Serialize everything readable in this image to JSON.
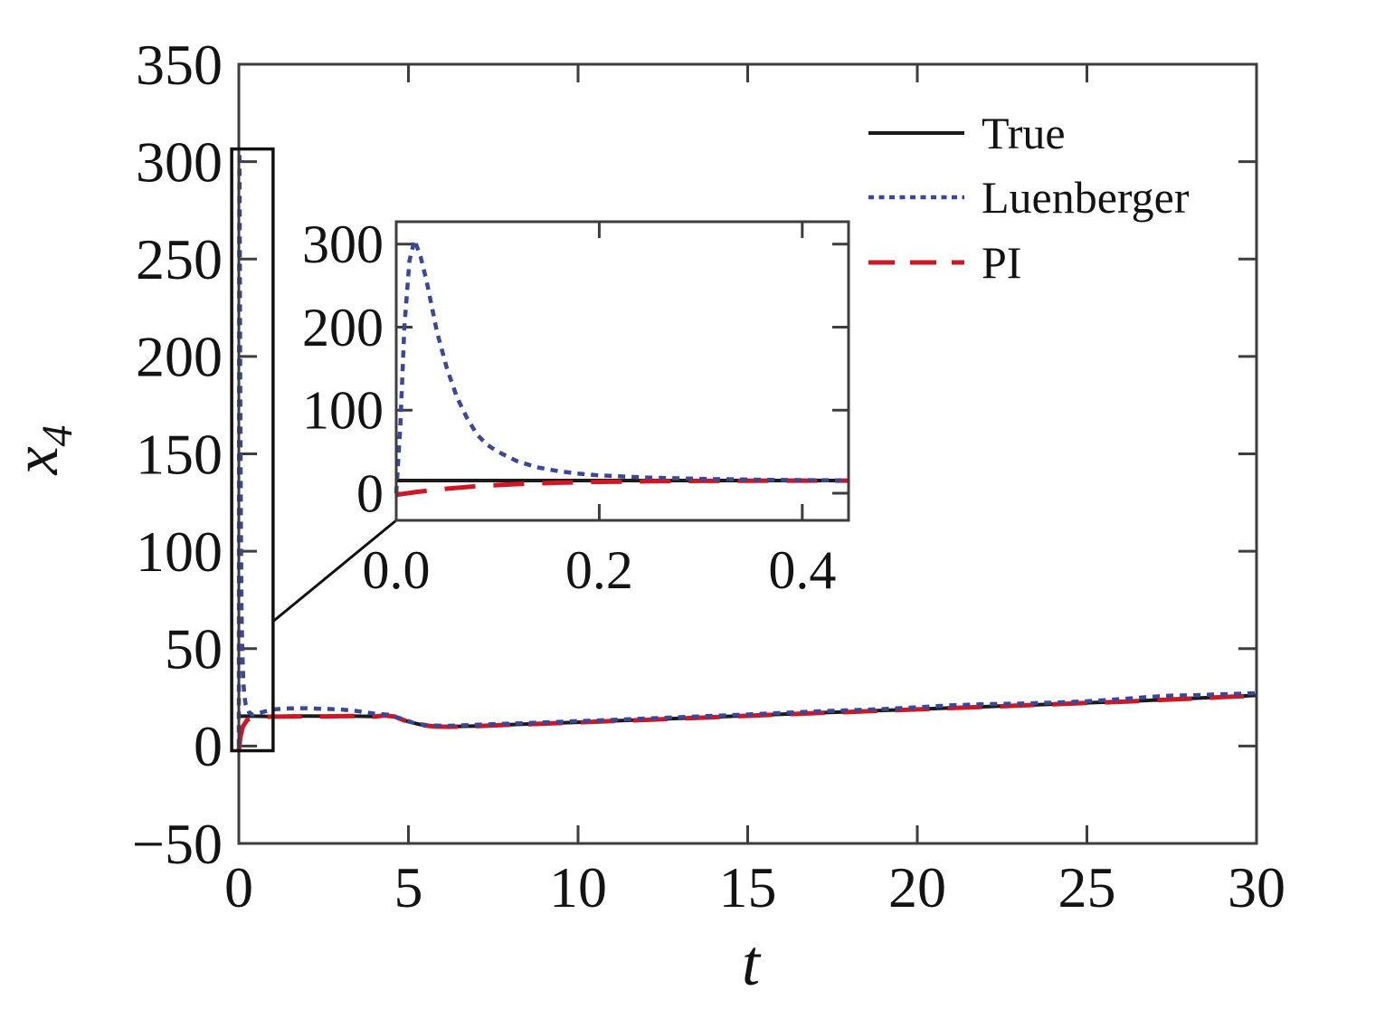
{
  "figure": {
    "background": "#ffffff",
    "axis_color": "#3d3d3d",
    "annotation_color": "#111111"
  },
  "chart_data": {
    "type": "line",
    "title": "",
    "xlabel": "t",
    "ylabel": "x4",
    "ylabel_base": "x",
    "ylabel_sub": "4",
    "legend": {
      "position": "upper-right-inside",
      "frame": false,
      "items": [
        {
          "label": "True",
          "series": "True"
        },
        {
          "label": "Luenberger",
          "series": "Luenberger"
        },
        {
          "label": "PI",
          "series": "PI"
        }
      ]
    },
    "main": {
      "xlim": [
        0,
        30
      ],
      "ylim": [
        -50,
        350
      ],
      "xticks": [
        0,
        5,
        10,
        15,
        20,
        25,
        30
      ],
      "xtick_labels": [
        "0",
        "5",
        "10",
        "15",
        "20",
        "25",
        "30"
      ],
      "yticks": [
        -50,
        0,
        50,
        100,
        150,
        200,
        250,
        300,
        350
      ],
      "ytick_labels": [
        "−50",
        "0",
        "50",
        "100",
        "150",
        "200",
        "250",
        "300",
        "350"
      ],
      "grid": false,
      "series": [
        {
          "name": "True",
          "color": "#1a1a1a",
          "style": "solid",
          "points": [
            [
              0,
              15.3
            ],
            [
              0.5,
              15.3
            ],
            [
              1,
              15.2
            ],
            [
              1.5,
              15.3
            ],
            [
              2,
              15.4
            ],
            [
              2.5,
              15.3
            ],
            [
              3,
              15.4
            ],
            [
              3.5,
              15.3
            ],
            [
              4,
              15.2
            ],
            [
              4.3,
              15.8
            ],
            [
              4.6,
              15.2
            ],
            [
              5,
              12.5
            ],
            [
              5.4,
              10.8
            ],
            [
              5.8,
              10.1
            ],
            [
              6.2,
              10.0
            ],
            [
              7,
              10.3
            ],
            [
              8,
              11.0
            ],
            [
              9,
              11.6
            ],
            [
              10,
              12.2
            ],
            [
              11,
              12.9
            ],
            [
              12,
              13.5
            ],
            [
              13,
              14.2
            ],
            [
              14,
              14.9
            ],
            [
              15,
              15.6
            ],
            [
              16,
              16.3
            ],
            [
              17,
              17.0
            ],
            [
              18,
              17.6
            ],
            [
              19,
              18.3
            ],
            [
              20,
              18.9
            ],
            [
              21,
              19.6
            ],
            [
              22,
              20.2
            ],
            [
              23,
              20.9
            ],
            [
              24,
              21.5
            ],
            [
              25,
              22.2
            ],
            [
              26,
              22.8
            ],
            [
              27,
              23.6
            ],
            [
              28,
              24.4
            ],
            [
              29,
              25.2
            ],
            [
              30,
              26.0
            ]
          ]
        },
        {
          "name": "PI",
          "color": "#d01622",
          "style": "dashed",
          "points": [
            [
              0,
              -2
            ],
            [
              0.05,
              5
            ],
            [
              0.12,
              10
            ],
            [
              0.25,
              13.5
            ],
            [
              0.5,
              14.8
            ],
            [
              1,
              15.1
            ],
            [
              1.5,
              15.2
            ],
            [
              2,
              15.3
            ],
            [
              2.5,
              15.2
            ],
            [
              3,
              15.3
            ],
            [
              3.5,
              15.4
            ],
            [
              4,
              15.1
            ],
            [
              4.3,
              15.7
            ],
            [
              4.6,
              15.1
            ],
            [
              5,
              12.3
            ],
            [
              5.4,
              10.7
            ],
            [
              5.8,
              10.0
            ],
            [
              6.2,
              9.9
            ],
            [
              7,
              10.2
            ],
            [
              8,
              10.9
            ],
            [
              9,
              11.5
            ],
            [
              10,
              12.1
            ],
            [
              11,
              12.8
            ],
            [
              12,
              13.4
            ],
            [
              13,
              14.1
            ],
            [
              14,
              14.8
            ],
            [
              15,
              15.5
            ],
            [
              16,
              16.2
            ],
            [
              17,
              16.9
            ],
            [
              18,
              17.5
            ],
            [
              19,
              18.2
            ],
            [
              20,
              18.8
            ],
            [
              21,
              19.5
            ],
            [
              22,
              20.1
            ],
            [
              23,
              20.8
            ],
            [
              24,
              21.4
            ],
            [
              25,
              22.1
            ],
            [
              26,
              22.7
            ],
            [
              27,
              23.5
            ],
            [
              28,
              24.3
            ],
            [
              29,
              25.1
            ],
            [
              30,
              25.9
            ]
          ]
        },
        {
          "name": "Luenberger",
          "color": "#3a489c",
          "style": "dotted",
          "points": [
            [
              0,
              0
            ],
            [
              0.006,
              120
            ],
            [
              0.012,
              260
            ],
            [
              0.018,
              305
            ],
            [
              0.026,
              272
            ],
            [
              0.04,
              195
            ],
            [
              0.06,
              115
            ],
            [
              0.08,
              70
            ],
            [
              0.1,
              50
            ],
            [
              0.13,
              34
            ],
            [
              0.16,
              26.5
            ],
            [
              0.2,
              21.5
            ],
            [
              0.3,
              17.3
            ],
            [
              0.4,
              16.0
            ],
            [
              0.6,
              17.0
            ],
            [
              1,
              18.8
            ],
            [
              1.5,
              19.3
            ],
            [
              2,
              19.4
            ],
            [
              2.5,
              19.1
            ],
            [
              3,
              18.8
            ],
            [
              3.5,
              17.9
            ],
            [
              4,
              16.6
            ],
            [
              4.4,
              16.1
            ],
            [
              4.8,
              14.0
            ],
            [
              5.2,
              11.6
            ],
            [
              5.6,
              10.6
            ],
            [
              6.2,
              10.4
            ],
            [
              7,
              10.9
            ],
            [
              8,
              11.5
            ],
            [
              9,
              12.1
            ],
            [
              10,
              12.8
            ],
            [
              11,
              13.4
            ],
            [
              12,
              14.1
            ],
            [
              13,
              14.8
            ],
            [
              14,
              15.5
            ],
            [
              15,
              16.2
            ],
            [
              16,
              17.0
            ],
            [
              17,
              17.8
            ],
            [
              18,
              18.4
            ],
            [
              19,
              19.0
            ],
            [
              20,
              19.9
            ],
            [
              21,
              20.9
            ],
            [
              22,
              21.5
            ],
            [
              23,
              21.8
            ],
            [
              24,
              22.3
            ],
            [
              25,
              23.0
            ],
            [
              26,
              24.1
            ],
            [
              27,
              25.4
            ],
            [
              27.5,
              25.9
            ],
            [
              28,
              26.0
            ],
            [
              29,
              26.6
            ],
            [
              30,
              27.1
            ]
          ]
        }
      ]
    },
    "inset": {
      "xlim": [
        0,
        0.4456
      ],
      "ylim": [
        -32.7,
        327
      ],
      "xticks": [
        0,
        0.2,
        0.4
      ],
      "xtick_labels": [
        "0.0",
        "0.2",
        "0.4"
      ],
      "yticks": [
        0,
        100,
        200,
        300
      ],
      "ytick_labels": [
        "0",
        "100",
        "200",
        "300"
      ],
      "grid": false,
      "series": [
        {
          "name": "True",
          "color": "#1a1a1a",
          "style": "solid",
          "points": [
            [
              0,
              15.3
            ],
            [
              0.445,
              15.3
            ]
          ]
        },
        {
          "name": "PI",
          "color": "#d01622",
          "style": "dashed",
          "points": [
            [
              0,
              -2
            ],
            [
              0.02,
              1.5
            ],
            [
              0.05,
              5.5
            ],
            [
              0.08,
              8.5
            ],
            [
              0.12,
              11.0
            ],
            [
              0.16,
              12.6
            ],
            [
              0.2,
              13.6
            ],
            [
              0.25,
              14.4
            ],
            [
              0.3,
              14.8
            ],
            [
              0.35,
              15.0
            ],
            [
              0.4,
              15.1
            ],
            [
              0.445,
              15.2
            ]
          ]
        },
        {
          "name": "Luenberger",
          "color": "#3a489c",
          "style": "dotted",
          "points": [
            [
              0,
              0
            ],
            [
              0.004,
              80
            ],
            [
              0.008,
              200
            ],
            [
              0.013,
              280
            ],
            [
              0.018,
              305
            ],
            [
              0.024,
              285
            ],
            [
              0.03,
              255
            ],
            [
              0.04,
              195
            ],
            [
              0.05,
              150
            ],
            [
              0.06,
              115
            ],
            [
              0.07,
              90
            ],
            [
              0.08,
              70
            ],
            [
              0.09,
              58
            ],
            [
              0.1,
              50
            ],
            [
              0.12,
              38
            ],
            [
              0.14,
              31
            ],
            [
              0.16,
              26.5
            ],
            [
              0.18,
              23.5
            ],
            [
              0.2,
              21.5
            ],
            [
              0.25,
              18.8
            ],
            [
              0.3,
              17.3
            ],
            [
              0.35,
              16.3
            ],
            [
              0.4,
              15.8
            ],
            [
              0.445,
              15.5
            ]
          ]
        }
      ]
    },
    "zoom_annotation": {
      "box_data_coords": {
        "x0": -0.21,
        "x1": 1.01,
        "y0": -2.4,
        "y1": 306.5
      },
      "connector_from_value": 64
    }
  }
}
